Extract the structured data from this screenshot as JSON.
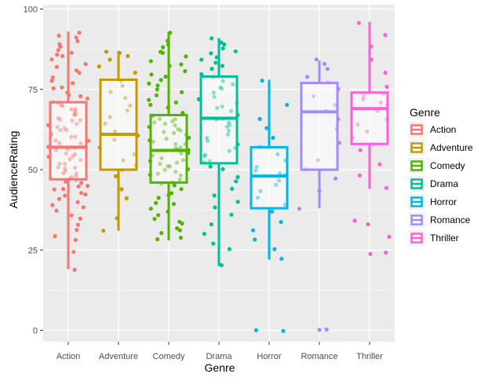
{
  "chart_data": {
    "type": "boxplot",
    "xlabel": "Genre",
    "ylabel": "AudienceRating",
    "ylim": [
      0,
      100
    ],
    "y_ticks": [
      0,
      25,
      50,
      75,
      100
    ],
    "categories": [
      "Action",
      "Adventure",
      "Comedy",
      "Drama",
      "Horror",
      "Romance",
      "Thriller"
    ],
    "grid": true,
    "legend": {
      "title": "Genre",
      "placement": "right",
      "entries": [
        "Action",
        "Adventure",
        "Comedy",
        "Drama",
        "Horror",
        "Romance",
        "Thriller"
      ]
    },
    "colors": {
      "Action": "#F8766D",
      "Adventure": "#C49A00",
      "Comedy": "#53B400",
      "Drama": "#00C094",
      "Horror": "#00B6EB",
      "Romance": "#A58AFF",
      "Thriller": "#FB61D7"
    },
    "boxes": [
      {
        "category": "Action",
        "min": 19,
        "q1": 47,
        "median": 57,
        "q3": 71,
        "max": 93
      },
      {
        "category": "Adventure",
        "min": 31,
        "q1": 50,
        "median": 61,
        "q3": 78,
        "max": 87
      },
      {
        "category": "Comedy",
        "min": 28,
        "q1": 46,
        "median": 56,
        "q3": 67,
        "max": 93
      },
      {
        "category": "Drama",
        "min": 20,
        "q1": 52,
        "median": 66,
        "q3": 79,
        "max": 91
      },
      {
        "category": "Horror",
        "min": 22,
        "q1": 38,
        "median": 48,
        "q3": 57,
        "max": 78,
        "outliers": [
          0,
          0
        ]
      },
      {
        "category": "Romance",
        "min": 38,
        "q1": 50,
        "median": 68,
        "q3": 77,
        "max": 84,
        "outliers": [
          0,
          0
        ]
      },
      {
        "category": "Thriller",
        "min": 44,
        "q1": 58,
        "median": 69,
        "q3": 74,
        "max": 96,
        "outliers": [
          24,
          24,
          29,
          33,
          34
        ]
      }
    ],
    "points": {
      "Action": [
        19,
        24,
        28,
        29,
        31,
        33,
        35,
        36,
        37,
        38,
        39,
        40,
        41,
        42,
        42,
        43,
        44,
        44,
        45,
        45,
        46,
        46,
        47,
        47,
        48,
        48,
        49,
        49,
        50,
        50,
        51,
        51,
        52,
        52,
        53,
        53,
        54,
        54,
        55,
        55,
        56,
        56,
        57,
        57,
        57,
        58,
        58,
        59,
        59,
        60,
        60,
        61,
        61,
        62,
        62,
        63,
        63,
        64,
        64,
        65,
        65,
        66,
        66,
        67,
        67,
        68,
        68,
        69,
        69,
        70,
        70,
        71,
        71,
        72,
        73,
        73,
        74,
        75,
        76,
        77,
        78,
        79,
        80,
        81,
        82,
        83,
        84,
        85,
        86,
        86,
        87,
        88,
        89,
        90,
        91,
        92,
        93
      ],
      "Adventure": [
        31,
        35,
        41,
        44,
        48,
        50,
        51,
        53,
        55,
        57,
        59,
        61,
        62,
        64,
        66,
        68,
        70,
        72,
        74,
        76,
        78,
        80,
        82,
        84,
        85,
        86,
        87
      ],
      "Comedy": [
        28,
        29,
        30,
        31,
        32,
        33,
        34,
        35,
        36,
        37,
        38,
        39,
        40,
        41,
        42,
        43,
        44,
        45,
        46,
        46,
        47,
        48,
        48,
        49,
        49,
        50,
        50,
        51,
        51,
        52,
        52,
        53,
        53,
        54,
        54,
        55,
        55,
        56,
        56,
        57,
        57,
        58,
        58,
        59,
        59,
        60,
        60,
        61,
        61,
        62,
        62,
        63,
        63,
        64,
        64,
        65,
        65,
        66,
        66,
        67,
        67,
        68,
        69,
        70,
        71,
        72,
        73,
        74,
        75,
        76,
        77,
        78,
        79,
        80,
        81,
        82,
        83,
        84,
        85,
        86,
        87,
        88,
        89,
        90,
        93
      ],
      "Drama": [
        20,
        25,
        27,
        30,
        33,
        36,
        38,
        40,
        42,
        44,
        46,
        48,
        50,
        51,
        52,
        53,
        54,
        55,
        56,
        57,
        58,
        59,
        60,
        61,
        62,
        63,
        64,
        65,
        66,
        66,
        67,
        68,
        69,
        70,
        71,
        72,
        73,
        74,
        75,
        76,
        77,
        78,
        79,
        80,
        81,
        82,
        83,
        84,
        85,
        86,
        87,
        88,
        89,
        90,
        91
      ],
      "Horror": [
        0,
        0,
        22,
        25,
        28,
        31,
        34,
        37,
        39,
        41,
        43,
        45,
        47,
        48,
        49,
        50,
        51,
        53,
        55,
        57,
        60,
        63,
        66,
        70,
        78
      ],
      "Romance": [
        0,
        0,
        38,
        43,
        47,
        50,
        53,
        58,
        63,
        66,
        68,
        70,
        73,
        75,
        77,
        79,
        81,
        83,
        84
      ],
      "Thriller": [
        24,
        24,
        29,
        33,
        34,
        44,
        48,
        52,
        56,
        58,
        60,
        62,
        64,
        66,
        68,
        69,
        70,
        71,
        72,
        73,
        74,
        76,
        80,
        84,
        88,
        92,
        96
      ]
    }
  }
}
